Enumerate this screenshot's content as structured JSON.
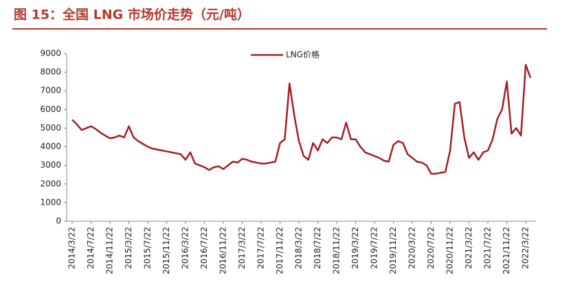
{
  "chart_data": {
    "type": "line",
    "title": "图 15：全国 LNG 市场价走势（元/吨）",
    "categories": [
      "2014/3/22",
      null,
      null,
      null,
      "2014/7/22",
      null,
      null,
      null,
      "2014/11/22",
      null,
      null,
      null,
      "2015/3/22",
      null,
      null,
      null,
      "2015/7/22",
      null,
      null,
      null,
      "2015/11/22",
      null,
      null,
      null,
      "2016/3/22",
      null,
      null,
      null,
      "2016/7/22",
      null,
      null,
      null,
      "2016/11/22",
      null,
      null,
      null,
      "2017/3/22",
      null,
      null,
      null,
      "2017/7/22",
      null,
      null,
      null,
      "2017/11/22",
      null,
      null,
      null,
      "2018/3/22",
      null,
      null,
      null,
      "2018/7/22",
      null,
      null,
      null,
      "2018/11/22",
      null,
      null,
      null,
      "2019/3/22",
      null,
      null,
      null,
      "2019/7/22",
      null,
      null,
      null,
      "2019/11/22",
      null,
      null,
      null,
      "2020/3/22",
      null,
      null,
      null,
      "2020/7/22",
      null,
      null,
      null,
      "2020/11/22",
      null,
      null,
      null,
      "2021/3/22",
      null,
      null,
      null,
      "2021/7/22",
      null,
      null,
      null,
      "2021/11/22",
      null,
      null,
      null,
      "2022/3/22",
      null
    ],
    "series": [
      {
        "name": "LNG价格",
        "color": "#a61c24",
        "values": [
          5450,
          5200,
          4900,
          5000,
          5100,
          4950,
          4750,
          4600,
          4450,
          4500,
          4600,
          4500,
          5100,
          4500,
          4300,
          4150,
          4000,
          3900,
          3850,
          3800,
          3750,
          3700,
          3650,
          3600,
          3300,
          3700,
          3100,
          3000,
          2900,
          2750,
          2900,
          2950,
          2800,
          3000,
          3200,
          3150,
          3350,
          3300,
          3200,
          3150,
          3100,
          3100,
          3150,
          3200,
          4200,
          4400,
          7400,
          5700,
          4300,
          3500,
          3300,
          4200,
          3800,
          4400,
          4200,
          4500,
          4500,
          4400,
          5300,
          4400,
          4400,
          4000,
          3700,
          3600,
          3500,
          3400,
          3250,
          3200,
          4100,
          4300,
          4200,
          3600,
          3400,
          3200,
          3150,
          3000,
          2550,
          2550,
          2600,
          2650,
          3800,
          6300,
          6400,
          4500,
          3400,
          3700,
          3300,
          3700,
          3800,
          4400,
          5500,
          6000,
          7500,
          4700,
          5000,
          4600,
          8400,
          7700
        ]
      }
    ],
    "ylim": [
      0,
      9000
    ],
    "yticks": [
      0,
      1000,
      2000,
      3000,
      4000,
      5000,
      6000,
      7000,
      8000,
      9000
    ]
  }
}
